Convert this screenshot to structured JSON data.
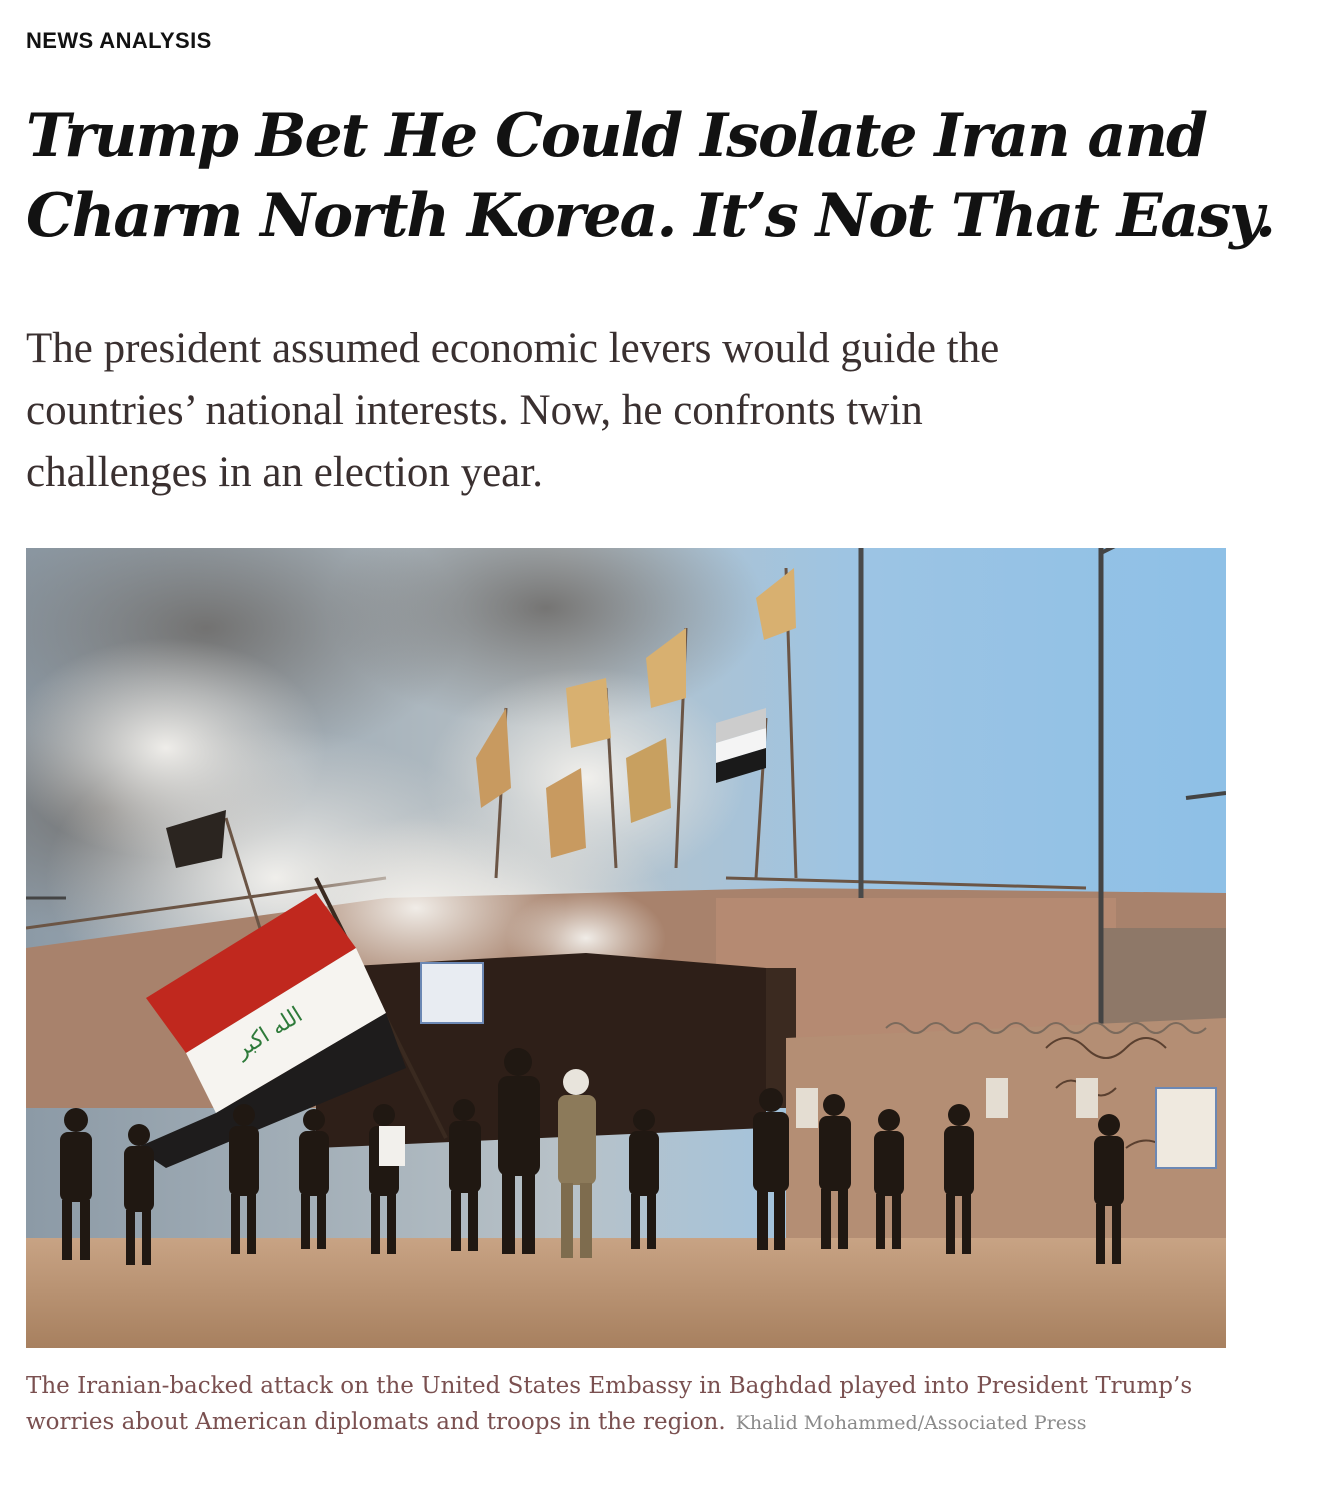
{
  "article": {
    "kicker": "NEWS ANALYSIS",
    "headline_line1": "Trump Bet He Could Isolate Iran and",
    "headline_line2": "Charm North Korea. It’s Not That Easy.",
    "dek_line1": "The president assumed economic levers would guide the",
    "dek_line2": "countries’ national interests. Now, he confronts twin",
    "dek_line3": "challenges in an election year.",
    "caption": "The Iranian-backed attack on the United States Embassy in Baghdad played into President Trump’s worries about American diplomats and troops in the region.",
    "credit": "Khalid Mohammed/Associated Press"
  },
  "colors": {
    "headline": "#121212",
    "dek": "#3a3030",
    "caption": "#7a5050",
    "credit": "#8a8a8a",
    "sky": "#9cc4e4",
    "ground": "#b79272"
  }
}
